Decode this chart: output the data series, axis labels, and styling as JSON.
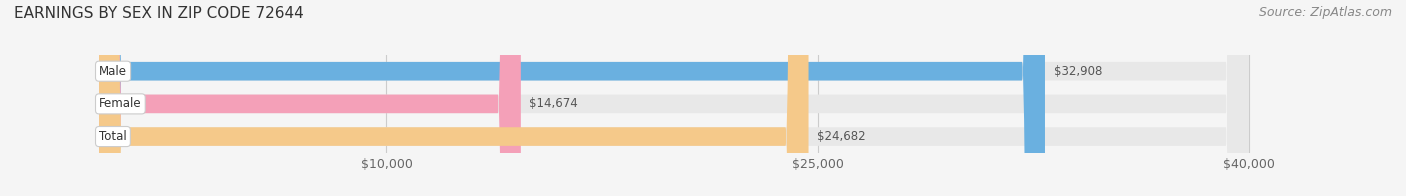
{
  "title": "EARNINGS BY SEX IN ZIP CODE 72644",
  "source": "Source: ZipAtlas.com",
  "categories": [
    "Male",
    "Female",
    "Total"
  ],
  "values": [
    32908,
    14674,
    24682
  ],
  "bar_colors": [
    "#6ab0e0",
    "#f4a0b8",
    "#f5c98a"
  ],
  "label_colors": [
    "#6ab0e0",
    "#f4a0b8",
    "#f5c98a"
  ],
  "bar_labels": [
    "$32,908",
    "$14,674",
    "$24,682"
  ],
  "label_bg": "#ffffff",
  "xlim": [
    0,
    40000
  ],
  "xticks": [
    10000,
    25000,
    40000
  ],
  "xtick_labels": [
    "$10,000",
    "$25,000",
    "$40,000"
  ],
  "title_fontsize": 11,
  "source_fontsize": 9,
  "tick_fontsize": 9,
  "bar_height": 0.55,
  "background_color": "#f5f5f5",
  "bar_background_color": "#e8e8e8"
}
